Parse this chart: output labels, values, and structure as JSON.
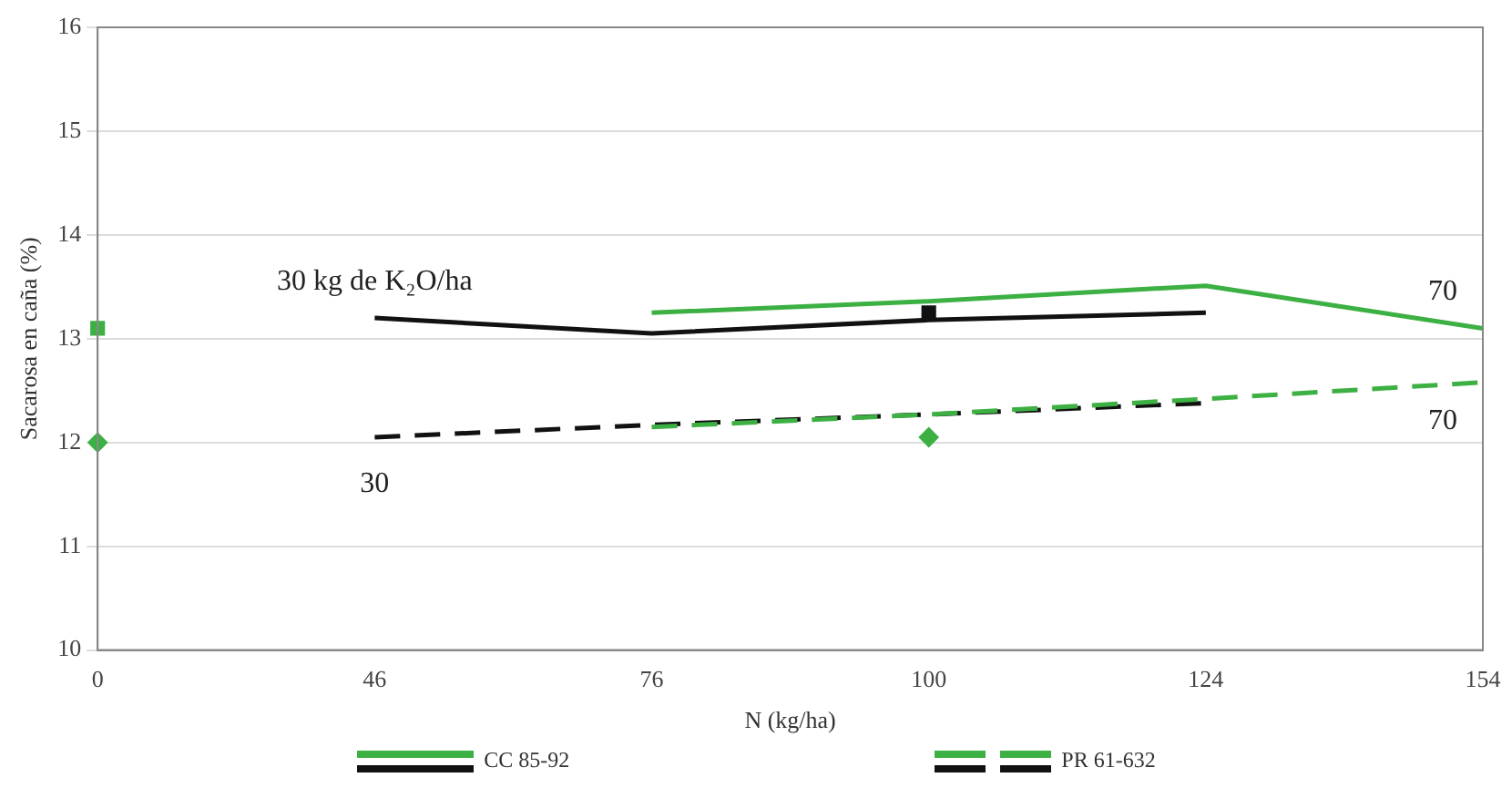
{
  "chart_data": {
    "type": "line",
    "xlabel": "N (kg/ha)",
    "ylabel": "Sacarosa en caña (%)",
    "categories": [
      "0",
      "46",
      "76",
      "100",
      "124",
      "154"
    ],
    "ylim": [
      10,
      16
    ],
    "yticks": [
      10,
      11,
      12,
      13,
      14,
      15,
      16
    ],
    "grid": "y",
    "legend": "bottom",
    "marker": "none",
    "series": [
      {
        "name": "CC 85-92",
        "color": "#3cb043",
        "line_style": "solid",
        "values": [
          null,
          null,
          13.25,
          13.36,
          13.51,
          13.1
        ]
      },
      {
        "color": "#111111",
        "line_style": "solid",
        "values": [
          null,
          13.2,
          13.05,
          13.18,
          13.25,
          null
        ]
      },
      {
        "name": "PR 61-632",
        "color": "#3cb043",
        "line_style": "dashed",
        "values": [
          null,
          null,
          12.15,
          12.27,
          12.42,
          12.58
        ]
      },
      {
        "color": "#111111",
        "line_style": "dashed",
        "values": [
          null,
          12.05,
          12.17,
          12.27,
          12.38,
          null
        ]
      },
      {
        "type": "scatter",
        "color": "#3cb043",
        "marker": "square",
        "values": [
          13.1,
          null,
          null,
          null,
          null,
          null
        ]
      },
      {
        "type": "scatter",
        "color": "#3cb043",
        "marker": "diamond",
        "values": [
          12.0,
          null,
          null,
          12.05,
          null,
          null
        ]
      },
      {
        "type": "scatter",
        "color": "#111111",
        "marker": "square",
        "values": [
          null,
          null,
          null,
          13.25,
          null,
          null
        ]
      }
    ],
    "annotations": [
      "30 kg de K₂O/ha",
      "30",
      "70",
      "70"
    ]
  }
}
